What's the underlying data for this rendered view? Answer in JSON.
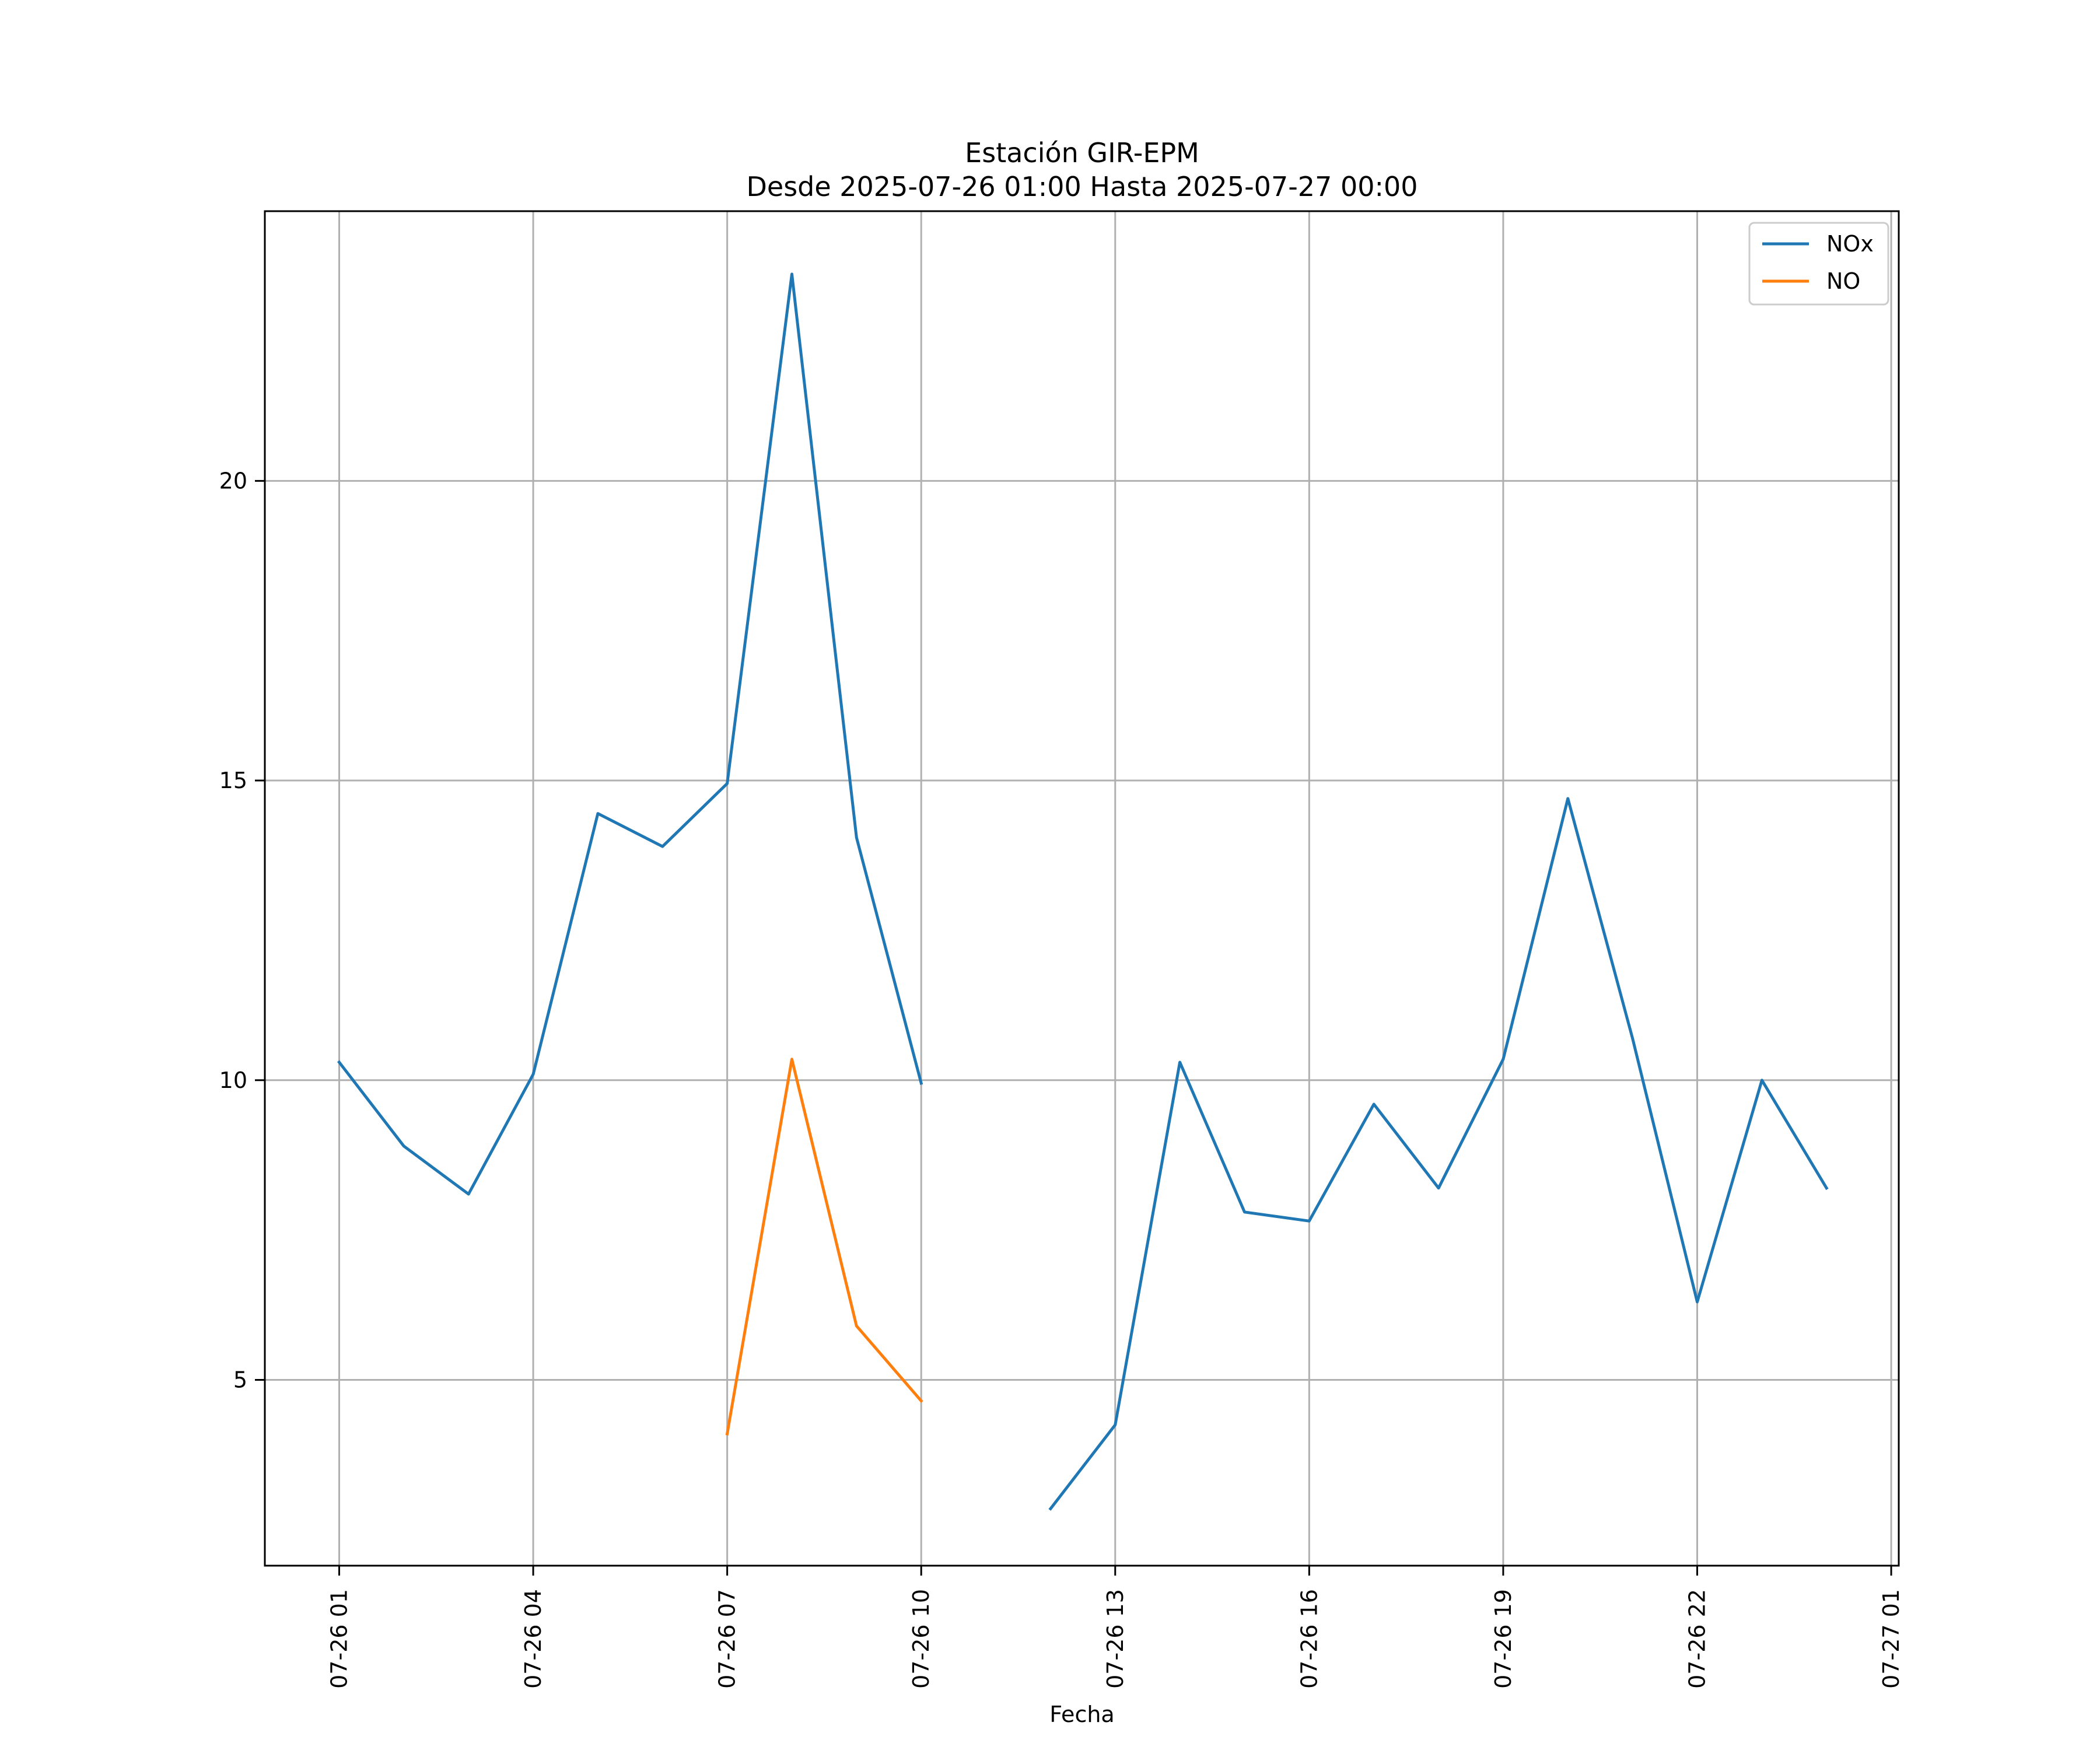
{
  "chart_data": {
    "type": "line",
    "title": "Estación GIR-EPM",
    "subtitle": "Desde 2025-07-26 01:00 Hasta 2025-07-27 00:00",
    "xlabel": "Fecha",
    "ylabel": "",
    "x_ticks": [
      "07-26 01",
      "07-26 04",
      "07-26 07",
      "07-26 10",
      "07-26 13",
      "07-26 16",
      "07-26 19",
      "07-26 22",
      "07-27 01"
    ],
    "x_hours": [
      "2025-07-26 01:00",
      "2025-07-26 02:00",
      "2025-07-26 03:00",
      "2025-07-26 04:00",
      "2025-07-26 05:00",
      "2025-07-26 06:00",
      "2025-07-26 07:00",
      "2025-07-26 08:00",
      "2025-07-26 09:00",
      "2025-07-26 10:00",
      "2025-07-26 11:00",
      "2025-07-26 12:00",
      "2025-07-26 13:00",
      "2025-07-26 14:00",
      "2025-07-26 15:00",
      "2025-07-26 16:00",
      "2025-07-26 17:00",
      "2025-07-26 18:00",
      "2025-07-26 19:00",
      "2025-07-26 20:00",
      "2025-07-26 21:00",
      "2025-07-26 22:00",
      "2025-07-26 23:00",
      "2025-07-27 00:00"
    ],
    "y_ticks": [
      5,
      10,
      15,
      20
    ],
    "ylim": [
      1.9,
      24.5
    ],
    "xlim": [
      "2025-07-25 23:51",
      "2025-07-27 01:07"
    ],
    "grid": true,
    "legend_position": "top-right",
    "series": [
      {
        "name": "NOx",
        "color": "#1f77b4",
        "values": [
          10.3,
          8.9,
          8.1,
          10.1,
          14.45,
          13.9,
          14.95,
          23.45,
          14.05,
          9.95,
          null,
          2.85,
          4.25,
          10.3,
          7.8,
          7.65,
          9.6,
          8.2,
          10.35,
          14.7,
          10.7,
          6.3,
          10.0,
          8.2
        ]
      },
      {
        "name": "NO",
        "color": "#ff7f0e",
        "values": [
          null,
          null,
          null,
          null,
          null,
          null,
          4.1,
          10.35,
          5.9,
          4.65,
          null,
          null,
          null,
          null,
          null,
          null,
          null,
          null,
          null,
          null,
          null,
          null,
          null,
          null
        ]
      }
    ]
  }
}
